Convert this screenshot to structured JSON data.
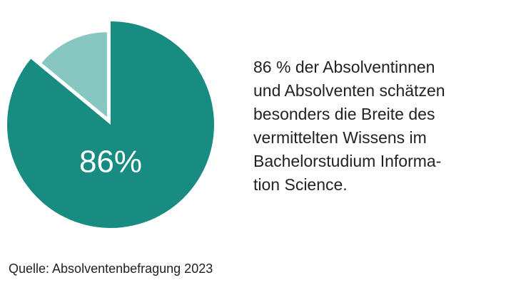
{
  "chart_data": {
    "type": "pie",
    "values": [
      86,
      14
    ],
    "value_labels": [
      "86%",
      null
    ],
    "colors": [
      "#188c80",
      "#86c8c1"
    ],
    "explode": [
      false,
      true
    ],
    "description": [
      "86 % der Absolventinnen",
      "und Absolventen schätzen",
      "besonders die Breite des",
      "vermittelten Wissens im",
      "Bachelorstudium Informa-",
      "tion Science."
    ],
    "source": "Quelle: Absolventenbefragung 2023"
  }
}
